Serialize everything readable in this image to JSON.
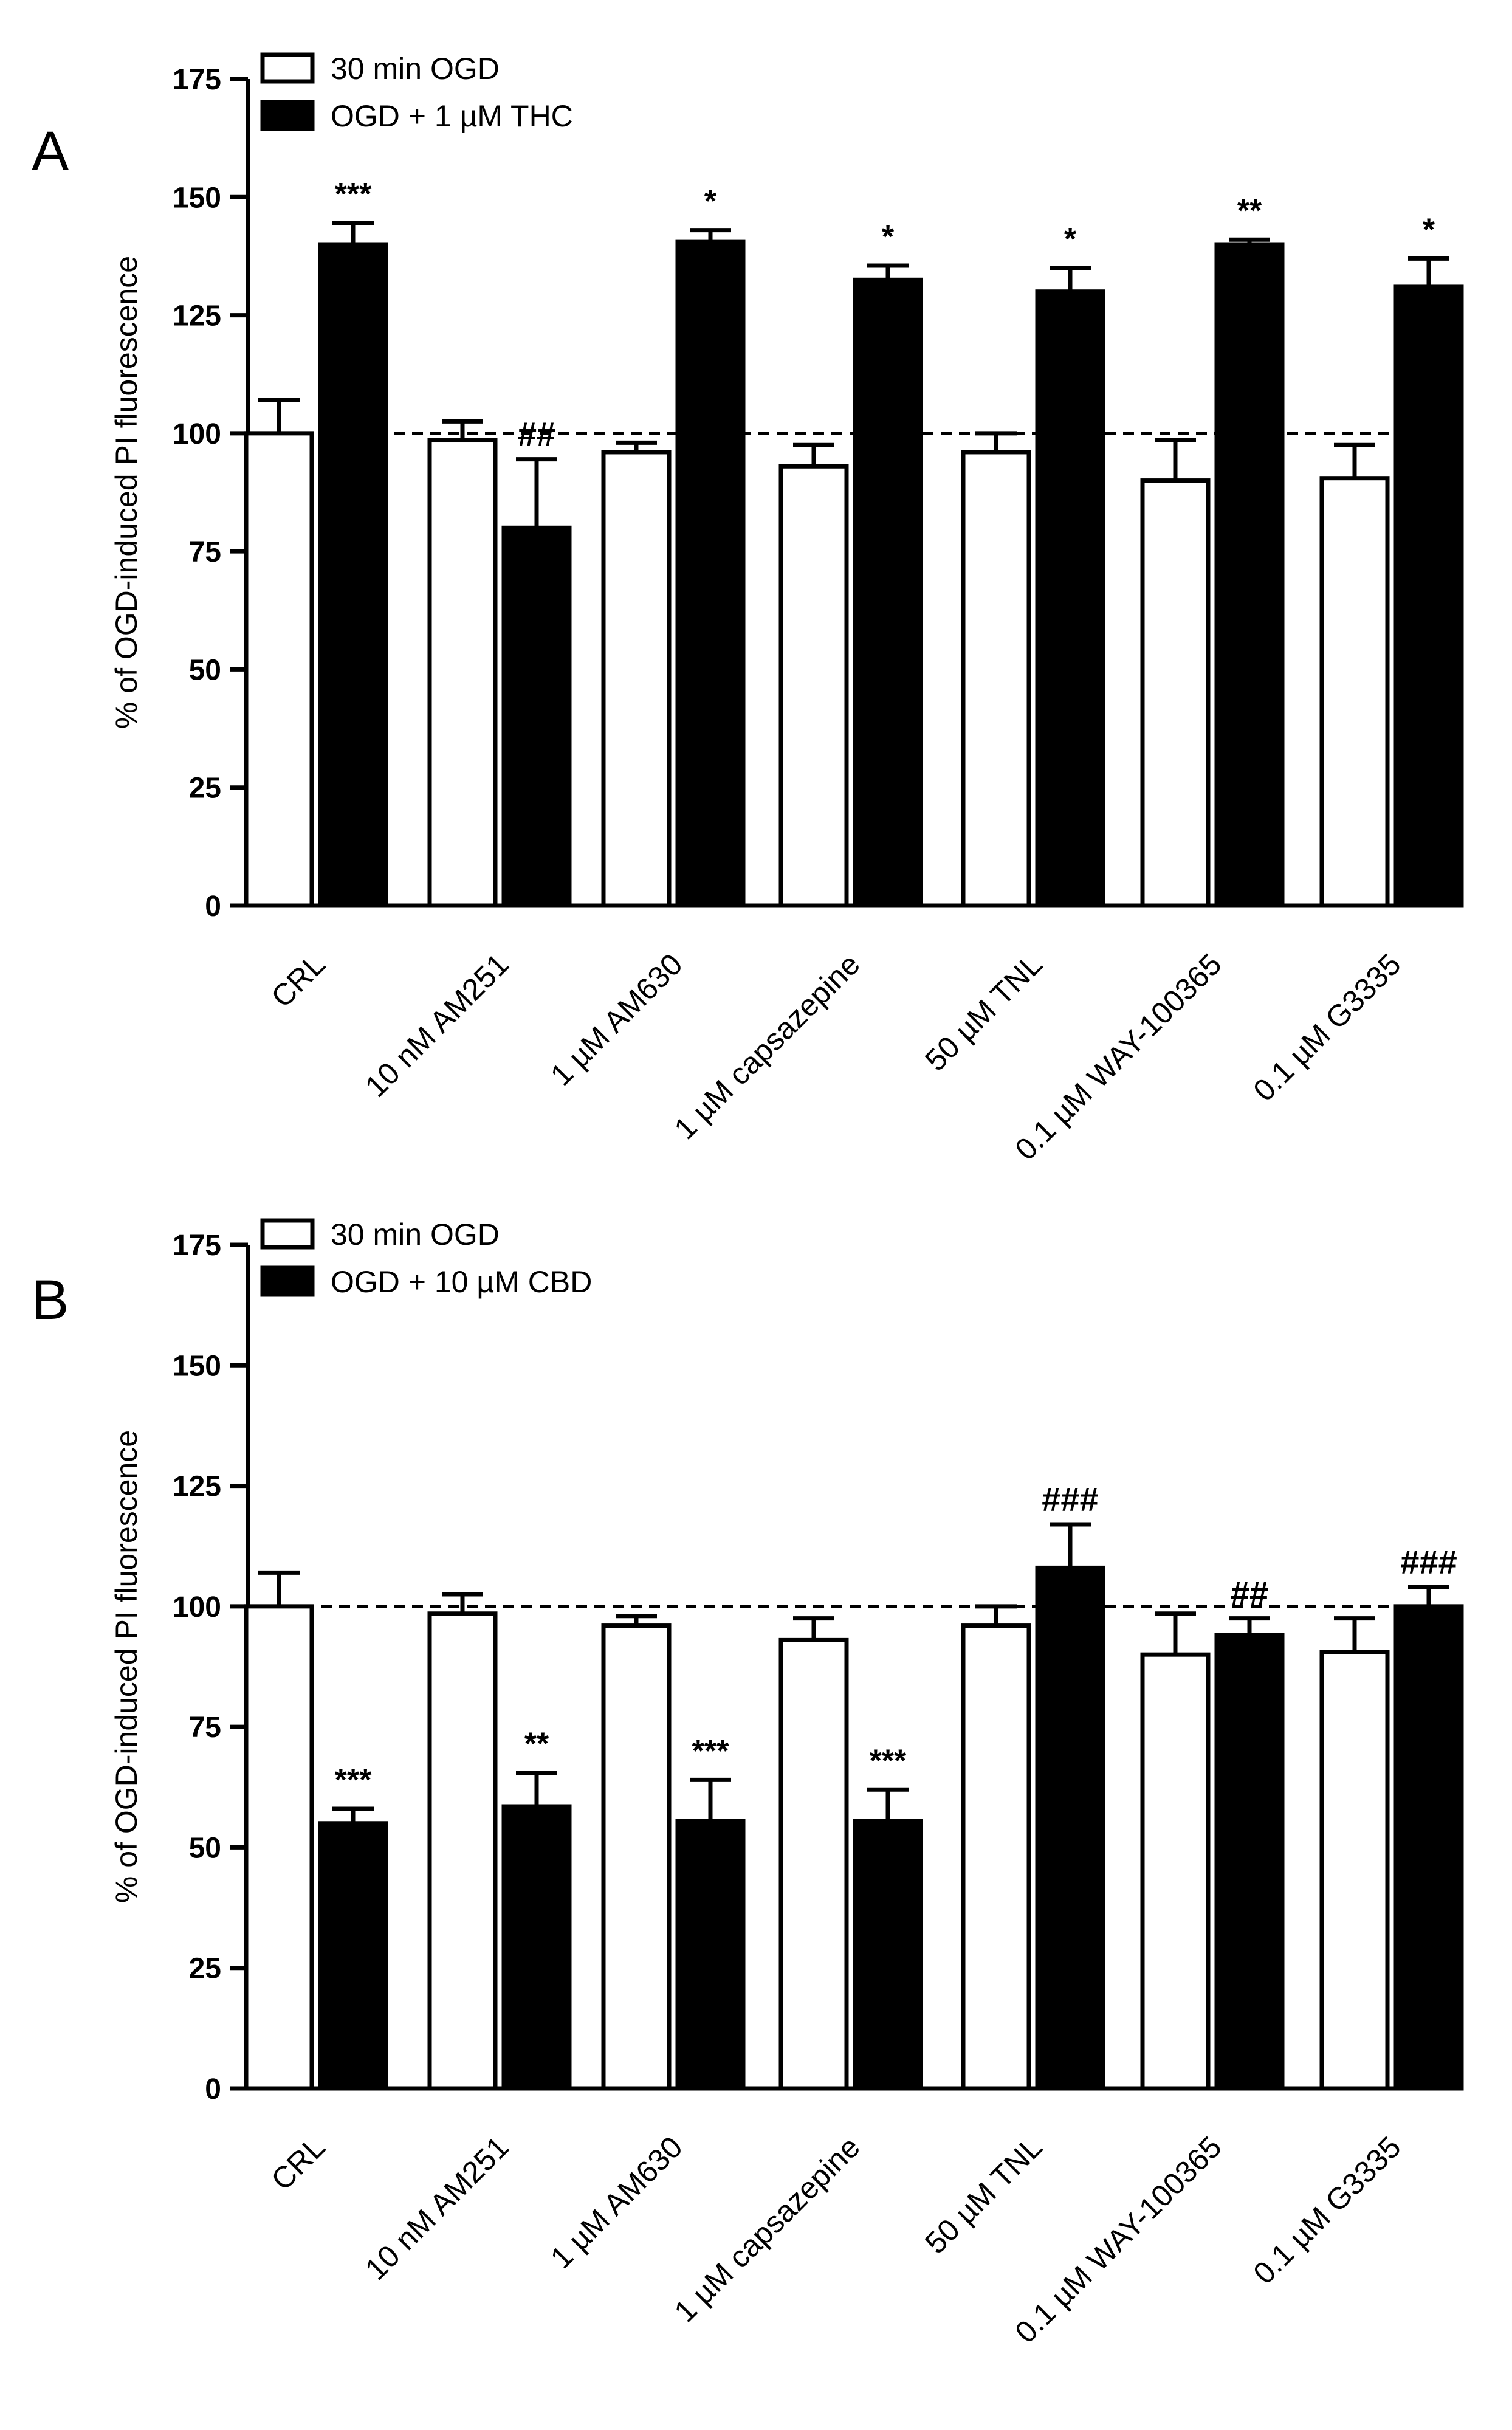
{
  "chart_data": [
    {
      "type": "bar",
      "panel_label": "A",
      "title": "",
      "xlabel": "",
      "ylabel": "% of OGD-induced PI fluorescence",
      "ylim": [
        0,
        175
      ],
      "yticks": [
        0,
        25,
        50,
        75,
        100,
        125,
        150,
        175
      ],
      "ytick_labels": [
        "0",
        "25",
        "50",
        "75",
        "100",
        "125",
        "150",
        "175"
      ],
      "reference_line": 100,
      "grid": false,
      "legend_position": "top-left",
      "categories": [
        "CRL",
        "10 nM AM251",
        "1 µM AM630",
        "1 µM capsazepine",
        "50 µM TNL",
        "0.1 µM WAY-100365",
        "0.1 µM G3335"
      ],
      "series": [
        {
          "name": "30 min OGD",
          "color": "#ffffff",
          "values": [
            100,
            98.5,
            96,
            93,
            96,
            90,
            90.5
          ],
          "errors": [
            7,
            4,
            2,
            4.5,
            4,
            8.5,
            7
          ],
          "annotations": [
            "",
            "",
            "",
            "",
            "",
            "",
            ""
          ]
        },
        {
          "name": "OGD + 1 µM THC",
          "color": "#000000",
          "values": [
            140,
            80,
            140.5,
            132.5,
            130,
            140,
            131
          ],
          "errors": [
            4.5,
            14.5,
            2.5,
            3,
            5,
            1,
            6
          ],
          "annotations": [
            "***",
            "##",
            "*",
            "*",
            "*",
            "**",
            "*"
          ]
        }
      ]
    },
    {
      "type": "bar",
      "panel_label": "B",
      "title": "",
      "xlabel": "",
      "ylabel": "% of OGD-induced PI fluorescence",
      "ylim": [
        0,
        175
      ],
      "yticks": [
        0,
        25,
        50,
        75,
        100,
        125,
        150,
        175
      ],
      "ytick_labels": [
        "0",
        "25",
        "50",
        "75",
        "100",
        "125",
        "150",
        "175"
      ],
      "reference_line": 100,
      "grid": false,
      "legend_position": "top-left",
      "categories": [
        "CRL",
        "10 nM AM251",
        "1 µM AM630",
        "1 µM capsazepine",
        "50 µM TNL",
        "0.1 µM WAY-100365",
        "0.1 µM G3335"
      ],
      "series": [
        {
          "name": "30 min OGD",
          "color": "#ffffff",
          "values": [
            100,
            98.5,
            96,
            93,
            96,
            90,
            90.5
          ],
          "errors": [
            7,
            4,
            2,
            4.5,
            4,
            8.5,
            7
          ],
          "annotations": [
            "",
            "",
            "",
            "",
            "",
            "",
            ""
          ]
        },
        {
          "name": "OGD + 10 µM CBD",
          "color": "#000000",
          "values": [
            55,
            58.5,
            55.5,
            55.5,
            108,
            94,
            100
          ],
          "errors": [
            3,
            7,
            8.5,
            6.5,
            9,
            3.5,
            4
          ],
          "annotations": [
            "***",
            "**",
            "***",
            "***",
            "###",
            "##",
            "###"
          ]
        }
      ]
    }
  ]
}
